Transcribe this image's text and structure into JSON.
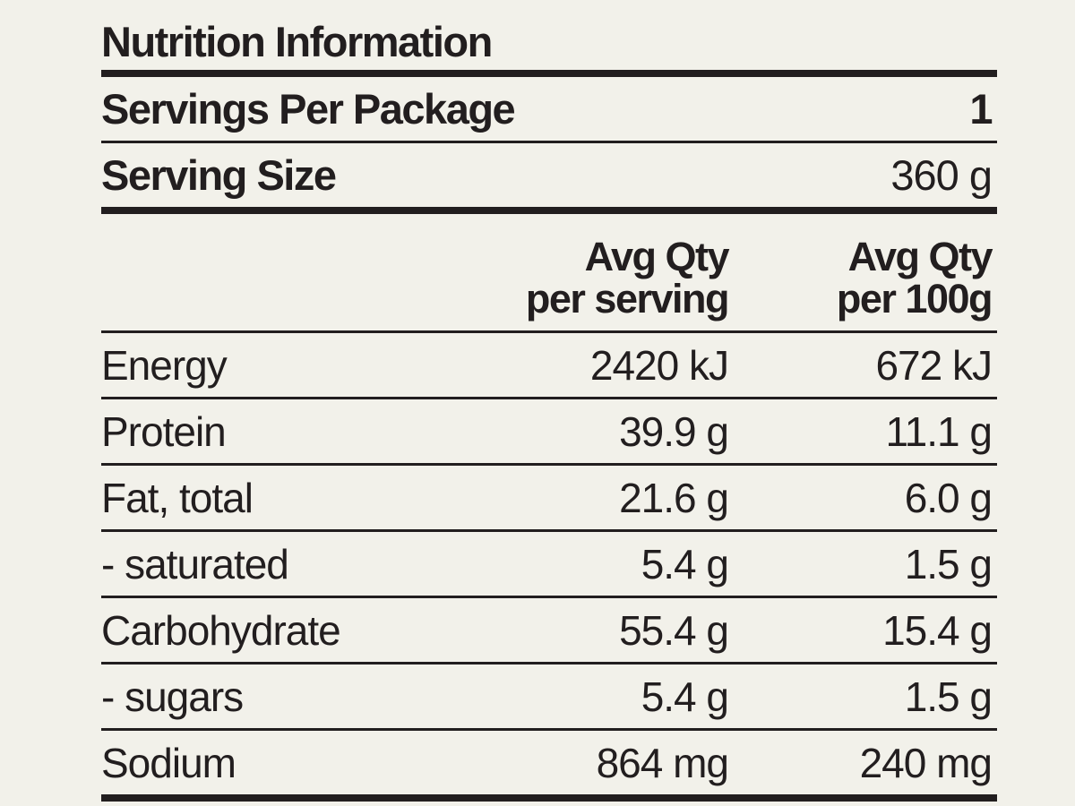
{
  "colors": {
    "background": "#f2f1ea",
    "text": "#221e1f",
    "rule": "#221e1f"
  },
  "panel": {
    "title": "Nutrition Information",
    "servings_per_package": {
      "label": "Servings Per Package",
      "value": "1"
    },
    "serving_size": {
      "label": "Serving Size",
      "value": "360 g"
    },
    "columns": {
      "per_serving": {
        "line1": "Avg Qty",
        "line2": "per serving"
      },
      "per_100g": {
        "line1": "Avg Qty",
        "line2": "per 100g"
      }
    },
    "rows": [
      {
        "label": "Energy",
        "per_serving": "2420 kJ",
        "per_100g": "672 kJ"
      },
      {
        "label": "Protein",
        "per_serving": "39.9 g",
        "per_100g": "11.1 g"
      },
      {
        "label": "Fat, total",
        "per_serving": "21.6 g",
        "per_100g": "6.0 g"
      },
      {
        "label": "- saturated",
        "per_serving": "5.4 g",
        "per_100g": "1.5 g"
      },
      {
        "label": "Carbohydrate",
        "per_serving": "55.4 g",
        "per_100g": "15.4 g"
      },
      {
        "label": "- sugars",
        "per_serving": "5.4 g",
        "per_100g": "1.5 g"
      },
      {
        "label": "Sodium",
        "per_serving": "864 mg",
        "per_100g": "240 mg"
      }
    ]
  }
}
